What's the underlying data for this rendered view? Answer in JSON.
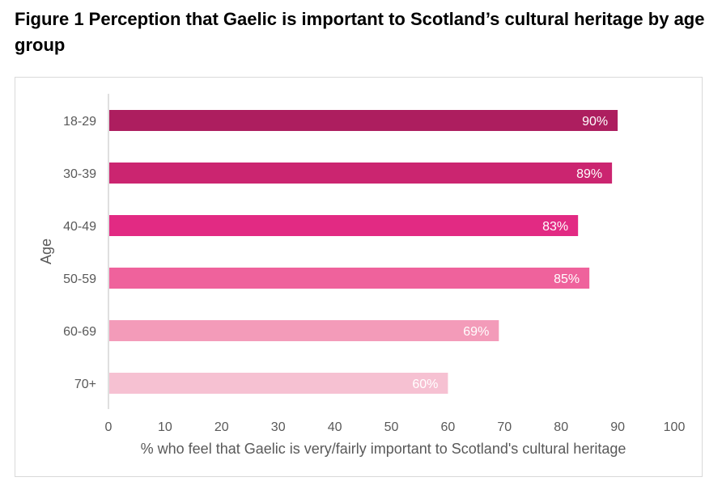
{
  "figure": {
    "title": "Figure 1 Perception that Gaelic is important to Scotland’s cultural heritage by age group"
  },
  "chart_data": {
    "type": "bar",
    "orientation": "horizontal",
    "categories": [
      "18-29",
      "30-39",
      "40-49",
      "50-59",
      "60-69",
      "70+"
    ],
    "values": [
      90,
      89,
      83,
      85,
      69,
      60
    ],
    "data_labels": [
      "90%",
      "89%",
      "83%",
      "85%",
      "69%",
      "60%"
    ],
    "colors": [
      "#ad1e5f",
      "#cb2570",
      "#e22a83",
      "#ef629c",
      "#f39bb9",
      "#f6c1d2"
    ],
    "xlabel": "% who feel that Gaelic is very/fairly important to Scotland's cultural heritage",
    "ylabel": "Age",
    "xlim": [
      0,
      100
    ],
    "xticks": [
      0,
      10,
      20,
      30,
      40,
      50,
      60,
      70,
      80,
      90,
      100
    ],
    "grid": false,
    "legend": "none"
  }
}
